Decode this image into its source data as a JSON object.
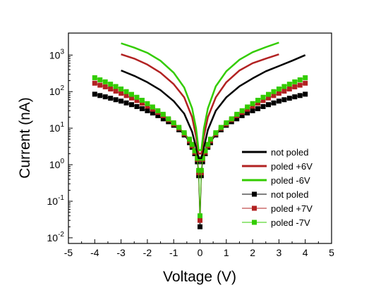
{
  "chart_data": {
    "type": "scatter",
    "title": "",
    "xlabel": "Voltage (V)",
    "ylabel": "Current (nA)",
    "xlim": [
      -5,
      5
    ],
    "ylim": [
      0.007,
      4000
    ],
    "yscale": "log",
    "grid": false,
    "legend_position": "bottom-right",
    "xticks": [
      {
        "value": -5,
        "label": "-5"
      },
      {
        "value": -4,
        "label": "-4"
      },
      {
        "value": -3,
        "label": "-3"
      },
      {
        "value": -2,
        "label": "-2"
      },
      {
        "value": -1,
        "label": "-1"
      },
      {
        "value": 0,
        "label": "0"
      },
      {
        "value": 1,
        "label": "1"
      },
      {
        "value": 2,
        "label": "2"
      },
      {
        "value": 3,
        "label": "3"
      },
      {
        "value": 4,
        "label": "4"
      },
      {
        "value": 5,
        "label": "5"
      }
    ],
    "yticks": [
      {
        "value": 0.01,
        "base": "10",
        "exp": "-2"
      },
      {
        "value": 0.1,
        "base": "10",
        "exp": "-1"
      },
      {
        "value": 1,
        "base": "10",
        "exp": "0"
      },
      {
        "value": 10,
        "base": "10",
        "exp": "1"
      },
      {
        "value": 100,
        "base": "10",
        "exp": "2"
      },
      {
        "value": 1000,
        "base": "10",
        "exp": "3"
      }
    ],
    "series": [
      {
        "name": "not poled",
        "style": "line",
        "color": "#000000",
        "x": [
          -3,
          -2.5,
          -2,
          -1.5,
          -1,
          -0.6,
          -0.3,
          -0.15,
          -0.05,
          0.05,
          0.15,
          0.3,
          0.6,
          1,
          1.5,
          2,
          2.5,
          3,
          3.5,
          4
        ],
        "y": [
          380,
          270,
          180,
          110,
          55,
          25,
          8,
          3,
          1.5,
          1.5,
          3,
          9,
          30,
          70,
          140,
          230,
          360,
          500,
          700,
          1000
        ]
      },
      {
        "name": "poled +6V",
        "style": "line",
        "color": "#b22222",
        "x": [
          -3,
          -2.5,
          -2,
          -1.5,
          -1,
          -0.6,
          -0.3,
          -0.15,
          -0.05,
          0.05,
          0.15,
          0.3,
          0.6,
          1,
          1.5,
          2,
          2.5,
          3
        ],
        "y": [
          1050,
          800,
          550,
          330,
          160,
          70,
          20,
          6,
          2,
          2,
          6,
          20,
          70,
          180,
          380,
          600,
          800,
          1050
        ]
      },
      {
        "name": "poled -6V",
        "style": "line",
        "color": "#33cc00",
        "x": [
          -3,
          -2.5,
          -2,
          -1.5,
          -1,
          -0.6,
          -0.3,
          -0.15,
          -0.05,
          0.05,
          0.15,
          0.3,
          0.6,
          1,
          1.5,
          2,
          2.5,
          3
        ],
        "y": [
          2100,
          1600,
          1150,
          700,
          330,
          130,
          35,
          10,
          2.5,
          2.5,
          10,
          35,
          140,
          360,
          750,
          1200,
          1650,
          2200
        ]
      },
      {
        "name": "not poled",
        "style": "markers",
        "color": "#000000",
        "x": [
          -4,
          -3.8,
          -3.6,
          -3.4,
          -3.2,
          -3,
          -2.8,
          -2.6,
          -2.4,
          -2.2,
          -2,
          -1.8,
          -1.6,
          -1.4,
          -1.2,
          -1,
          -0.8,
          -0.6,
          -0.4,
          -0.3,
          -0.2,
          -0.1,
          -0.05,
          0,
          0.05,
          0.1,
          0.2,
          0.3,
          0.4,
          0.6,
          0.8,
          1,
          1.2,
          1.4,
          1.6,
          1.8,
          2,
          2.2,
          2.4,
          2.6,
          2.8,
          3,
          3.2,
          3.4,
          3.6,
          3.8,
          4
        ],
        "y": [
          85,
          78,
          72,
          66,
          60,
          55,
          49,
          44,
          39,
          34,
          30,
          26,
          22,
          18,
          15,
          12,
          9,
          6.5,
          4,
          3,
          2,
          1.2,
          0.5,
          0.02,
          0.5,
          1.2,
          2,
          3,
          4,
          6.5,
          9,
          12,
          15,
          18,
          22,
          26,
          30,
          34,
          39,
          44,
          49,
          55,
          60,
          66,
          72,
          78,
          85
        ]
      },
      {
        "name": "poled +7V",
        "style": "markers",
        "color": "#b22222",
        "x": [
          -4,
          -3.8,
          -3.6,
          -3.4,
          -3.2,
          -3,
          -2.8,
          -2.6,
          -2.4,
          -2.2,
          -2,
          -1.8,
          -1.6,
          -1.4,
          -1.2,
          -1,
          -0.8,
          -0.6,
          -0.4,
          -0.3,
          -0.2,
          -0.1,
          -0.05,
          0,
          0.05,
          0.1,
          0.2,
          0.3,
          0.4,
          0.6,
          0.8,
          1,
          1.2,
          1.4,
          1.6,
          1.8,
          2,
          2.2,
          2.4,
          2.6,
          2.8,
          3,
          3.2,
          3.4,
          3.6,
          3.8,
          4
        ],
        "y": [
          170,
          150,
          135,
          118,
          103,
          90,
          78,
          67,
          57,
          48,
          40,
          33,
          27,
          22,
          17,
          13,
          10,
          7,
          4.5,
          3.3,
          2.2,
          1.4,
          0.6,
          0.03,
          0.6,
          1.4,
          2.2,
          3.3,
          4.5,
          7,
          10,
          13,
          17,
          22,
          27,
          33,
          40,
          48,
          57,
          67,
          78,
          90,
          103,
          118,
          135,
          150,
          170
        ]
      },
      {
        "name": "poled -7V",
        "style": "markers",
        "color": "#33cc00",
        "x": [
          -4,
          -3.8,
          -3.6,
          -3.4,
          -3.2,
          -3,
          -2.8,
          -2.6,
          -2.4,
          -2.2,
          -2,
          -1.8,
          -1.6,
          -1.4,
          -1.2,
          -1,
          -0.8,
          -0.6,
          -0.4,
          -0.3,
          -0.2,
          -0.1,
          -0.05,
          0,
          0.05,
          0.1,
          0.2,
          0.3,
          0.4,
          0.6,
          0.8,
          1,
          1.2,
          1.4,
          1.6,
          1.8,
          2,
          2.2,
          2.4,
          2.6,
          2.8,
          3,
          3.2,
          3.4,
          3.6,
          3.8,
          4
        ],
        "y": [
          240,
          210,
          185,
          160,
          138,
          118,
          100,
          84,
          70,
          58,
          47,
          38,
          30,
          24,
          18,
          14,
          10.5,
          7.5,
          5,
          3.6,
          2.4,
          1.5,
          0.7,
          0.04,
          0.7,
          1.5,
          2.4,
          3.6,
          5,
          7.5,
          10.5,
          14,
          18,
          24,
          30,
          38,
          47,
          58,
          70,
          84,
          100,
          118,
          138,
          160,
          185,
          210,
          240
        ]
      }
    ]
  }
}
